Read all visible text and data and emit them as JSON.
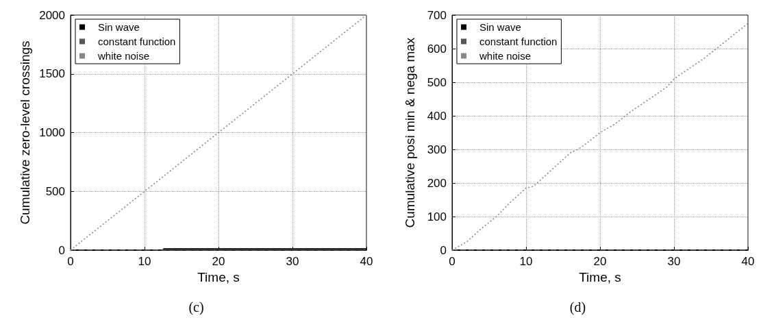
{
  "chart_data": [
    {
      "type": "line",
      "xlabel": "Time, s",
      "ylabel": "Cumulative zero-level crossings",
      "annotations": [
        "(c)"
      ],
      "xlim": [
        0,
        40
      ],
      "xticks": [
        0,
        10,
        20,
        30,
        40
      ],
      "ylim": [
        0,
        2000
      ],
      "yticks": [
        0,
        500,
        1000,
        1500,
        2000
      ],
      "grid": true,
      "legend": "top left",
      "series": [
        {
          "name": "Sin wave",
          "color": "#000000",
          "line_style": "solid",
          "x": [
            0,
            12.5,
            12.6,
            40
          ],
          "values": [
            0,
            0,
            10,
            10
          ]
        },
        {
          "name": "constant function",
          "color": "#555555",
          "line_style": "dashed",
          "x": [
            0,
            40
          ],
          "values": [
            0,
            0
          ]
        },
        {
          "name": "white noise",
          "color": "#888888",
          "line_style": "dotted",
          "x": [
            0,
            5,
            10,
            15,
            20,
            25,
            30,
            35,
            40
          ],
          "values": [
            0,
            250,
            500,
            750,
            1000,
            1250,
            1500,
            1750,
            2000
          ]
        }
      ]
    },
    {
      "type": "line",
      "xlabel": "Time, s",
      "ylabel": "Cumulative posi min & nega max",
      "annotations": [
        "(d)"
      ],
      "xlim": [
        0,
        40
      ],
      "xticks": [
        0,
        10,
        20,
        30,
        40
      ],
      "ylim": [
        0,
        700
      ],
      "yticks": [
        0,
        100,
        200,
        300,
        400,
        500,
        600,
        700
      ],
      "grid": true,
      "legend": "top left",
      "series": [
        {
          "name": "Sin wave",
          "color": "#000000",
          "line_style": "solid",
          "x": [
            0,
            40
          ],
          "values": [
            0,
            0
          ]
        },
        {
          "name": "constant function",
          "color": "#555555",
          "line_style": "dashed",
          "x": [
            0,
            40
          ],
          "values": [
            0,
            0
          ]
        },
        {
          "name": "white noise",
          "color": "#888888",
          "line_style": "dotted",
          "x": [
            0,
            2,
            4,
            6,
            8,
            10,
            11,
            12,
            14,
            16,
            17,
            18,
            20,
            22,
            24,
            26,
            28,
            29,
            30,
            32,
            34,
            36,
            38,
            40
          ],
          "values": [
            0,
            25,
            65,
            100,
            145,
            185,
            190,
            210,
            250,
            290,
            300,
            315,
            350,
            375,
            410,
            440,
            470,
            485,
            510,
            540,
            570,
            605,
            640,
            675
          ]
        }
      ]
    }
  ]
}
